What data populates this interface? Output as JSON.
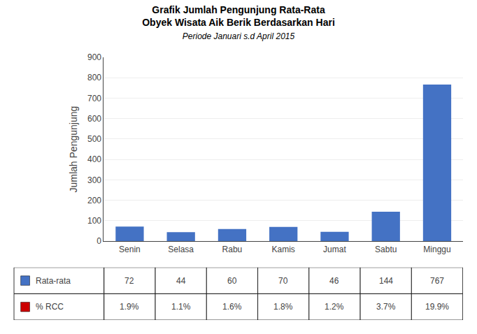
{
  "chart_data": [
    {
      "type": "bar",
      "title": "Grafik Jumlah Pengunjung Rata-Rata\nObyek Wisata Aik Berik Berdasarkan Hari",
      "subtitle": "Periode Januari s.d April 2015",
      "ylabel": "Jumlah Pengunjung",
      "categories": [
        "Senin",
        "Selasa",
        "Rabu",
        "Kamis",
        "Jumat",
        "Sabtu",
        "Minggu"
      ],
      "values": [
        72,
        44,
        60,
        70,
        46,
        144,
        767
      ],
      "color": "#4472C4",
      "ylim": [
        0,
        900
      ],
      "yticks": [
        0,
        100,
        200,
        300,
        400,
        500,
        600,
        700,
        800,
        900
      ],
      "grid": true
    },
    {
      "type": "table",
      "series": [
        {
          "name": "Rata-rata",
          "color": "#4472C4",
          "values": [
            72,
            44,
            60,
            70,
            46,
            144,
            767
          ]
        },
        {
          "name": "% RCC",
          "color": "#CC0000",
          "values": [
            1.9,
            1.1,
            1.6,
            1.8,
            1.2,
            3.7,
            19.9
          ],
          "value_labels": [
            "1.9%",
            "1.1%",
            "1.6%",
            "1.8%",
            "1.2%",
            "3.7%",
            "19.9%"
          ]
        }
      ]
    }
  ]
}
